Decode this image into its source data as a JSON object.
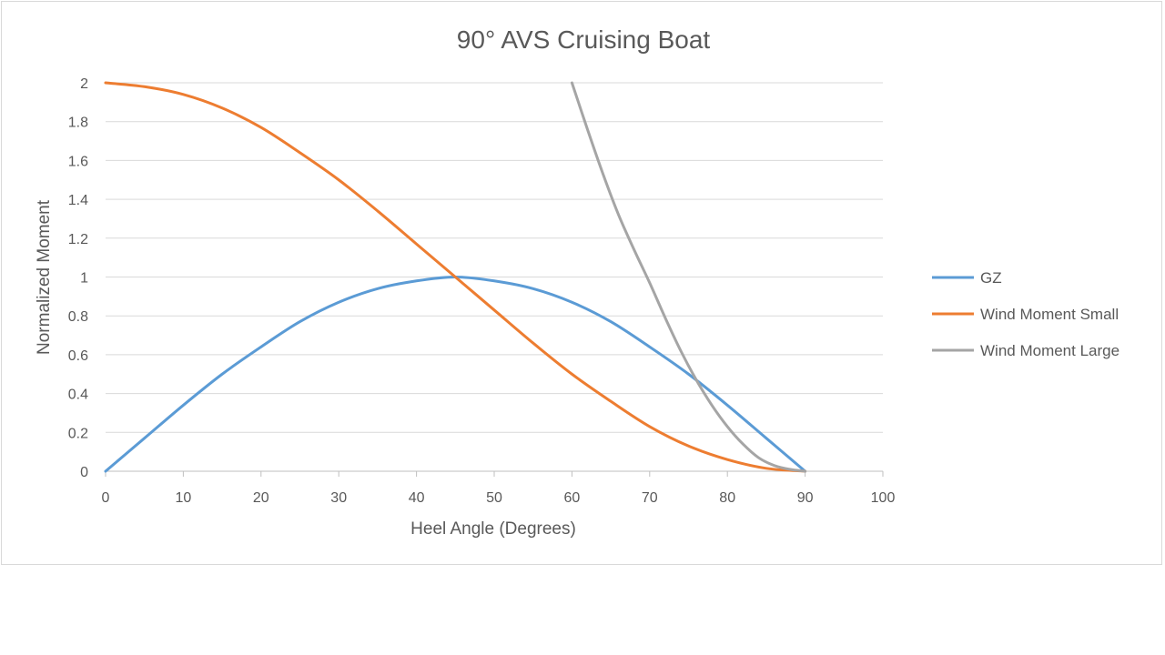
{
  "chart_data": {
    "type": "line",
    "title": "90° AVS Cruising Boat",
    "xlabel": "Heel Angle (Degrees)",
    "ylabel": "Normalized Moment",
    "xlim": [
      0,
      100
    ],
    "ylim": [
      0,
      2
    ],
    "x_ticks": [
      0,
      10,
      20,
      30,
      40,
      50,
      60,
      70,
      80,
      90,
      100
    ],
    "y_ticks": [
      0,
      0.2,
      0.4,
      0.6,
      0.8,
      1,
      1.2,
      1.4,
      1.6,
      1.8,
      2
    ],
    "y_tick_labels": [
      "0",
      "0.2",
      "0.4",
      "0.6",
      "0.8",
      "1",
      "1.2",
      "1.4",
      "1.6",
      "1.8",
      "2"
    ],
    "grid": "horizontal",
    "legend_position": "right",
    "series": [
      {
        "name": "GZ",
        "color": "#5b9bd5",
        "x": [
          0,
          5,
          10,
          15,
          20,
          25,
          30,
          35,
          40,
          45,
          50,
          55,
          60,
          65,
          70,
          75,
          80,
          85,
          90
        ],
        "y": [
          0,
          0.17,
          0.34,
          0.5,
          0.64,
          0.77,
          0.87,
          0.94,
          0.98,
          1.0,
          0.98,
          0.94,
          0.87,
          0.77,
          0.64,
          0.5,
          0.34,
          0.17,
          0
        ]
      },
      {
        "name": "Wind Moment Small",
        "color": "#ed7d31",
        "x": [
          0,
          5,
          10,
          15,
          20,
          25,
          30,
          35,
          40,
          45,
          50,
          55,
          60,
          65,
          70,
          75,
          80,
          85,
          90
        ],
        "y": [
          2.0,
          1.98,
          1.94,
          1.87,
          1.77,
          1.64,
          1.5,
          1.34,
          1.17,
          1.0,
          0.83,
          0.66,
          0.5,
          0.36,
          0.23,
          0.13,
          0.06,
          0.015,
          0
        ]
      },
      {
        "name": "Wind Moment Large",
        "color": "#a5a5a5",
        "x": [
          60,
          62,
          64,
          66,
          68,
          70,
          72,
          74,
          76,
          78,
          80,
          82,
          84,
          86,
          88,
          90
        ],
        "y": [
          2.0,
          1.76,
          1.53,
          1.32,
          1.14,
          0.97,
          0.79,
          0.62,
          0.47,
          0.34,
          0.23,
          0.14,
          0.07,
          0.03,
          0.01,
          0
        ]
      }
    ]
  }
}
